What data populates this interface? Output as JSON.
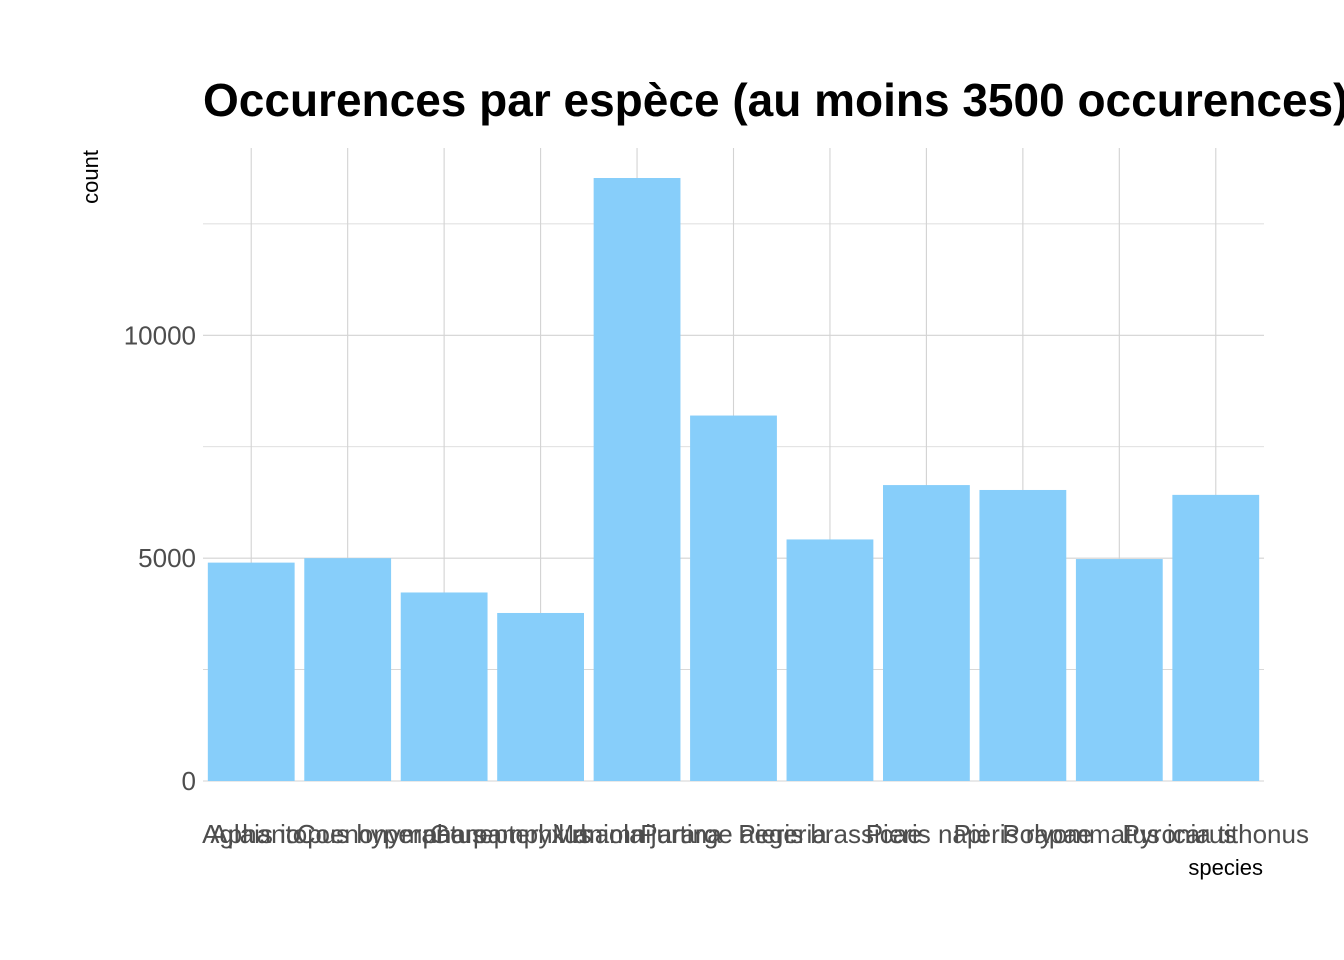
{
  "chart_data": {
    "type": "bar",
    "title": "Occurences par espèce (au moins 3500 occurences)",
    "xlabel": "species",
    "ylabel": "count",
    "categories": [
      "Aglais io",
      "Aphantopus hyperantus",
      "Coenonympha pamphilus",
      "Gonepteryx rhamni",
      "Maniola jurtina",
      "Pararge aegeria",
      "Pieris brassicae",
      "Pieris napi",
      "Pieris rapae",
      "Polyommatus icarus",
      "Pyronia tithonus"
    ],
    "values": [
      4900,
      5000,
      4230,
      3770,
      13530,
      8200,
      5420,
      6640,
      6530,
      4980,
      6420
    ],
    "ylim": [
      0,
      13530
    ],
    "yticks": [
      0,
      5000,
      10000
    ],
    "grid": true,
    "legend": "none",
    "colors": {
      "bar": "#87CEFA",
      "grid": "#d3d3d3",
      "tick_text": "#4d4d4d"
    }
  }
}
